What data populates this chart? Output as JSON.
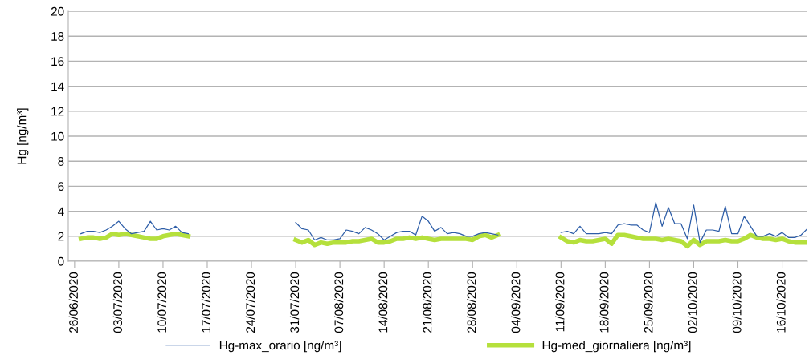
{
  "chart_data": {
    "type": "line",
    "ylabel": "Hg [ng/m³]",
    "x": [
      "2020-06-27",
      "2020-06-28",
      "2020-06-29",
      "2020-06-30",
      "2020-07-01",
      "2020-07-02",
      "2020-07-03",
      "2020-07-04",
      "2020-07-05",
      "2020-07-06",
      "2020-07-07",
      "2020-07-08",
      "2020-07-09",
      "2020-07-10",
      "2020-07-11",
      "2020-07-12",
      "2020-07-13",
      "2020-07-14",
      "2020-07-15",
      "2020-07-16",
      "2020-07-17",
      "2020-07-18",
      "2020-07-19",
      "2020-07-20",
      "2020-07-21",
      "2020-07-22",
      "2020-07-23",
      "2020-07-24",
      "2020-07-25",
      "2020-07-26",
      "2020-07-27",
      "2020-07-28",
      "2020-07-29",
      "2020-07-30",
      "2020-07-31",
      "2020-08-01",
      "2020-08-02",
      "2020-08-03",
      "2020-08-04",
      "2020-08-05",
      "2020-08-06",
      "2020-08-07",
      "2020-08-08",
      "2020-08-09",
      "2020-08-10",
      "2020-08-11",
      "2020-08-12",
      "2020-08-13",
      "2020-08-14",
      "2020-08-15",
      "2020-08-16",
      "2020-08-17",
      "2020-08-18",
      "2020-08-19",
      "2020-08-20",
      "2020-08-21",
      "2020-08-22",
      "2020-08-23",
      "2020-08-24",
      "2020-08-25",
      "2020-08-26",
      "2020-08-27",
      "2020-08-28",
      "2020-08-29",
      "2020-08-30",
      "2020-08-31",
      "2020-09-01",
      "2020-09-02",
      "2020-09-03",
      "2020-09-04",
      "2020-09-05",
      "2020-09-06",
      "2020-09-07",
      "2020-09-08",
      "2020-09-09",
      "2020-09-10",
      "2020-09-11",
      "2020-09-12",
      "2020-09-13",
      "2020-09-14",
      "2020-09-15",
      "2020-09-16",
      "2020-09-17",
      "2020-09-18",
      "2020-09-19",
      "2020-09-20",
      "2020-09-21",
      "2020-09-22",
      "2020-09-23",
      "2020-09-24",
      "2020-09-25",
      "2020-09-26",
      "2020-09-27",
      "2020-09-28",
      "2020-09-29",
      "2020-09-30",
      "2020-10-01",
      "2020-10-02",
      "2020-10-03",
      "2020-10-04",
      "2020-10-05",
      "2020-10-06",
      "2020-10-07",
      "2020-10-08",
      "2020-10-09",
      "2020-10-10",
      "2020-10-11",
      "2020-10-12",
      "2020-10-13",
      "2020-10-14",
      "2020-10-15",
      "2020-10-16",
      "2020-10-17",
      "2020-10-18",
      "2020-10-19",
      "2020-10-20"
    ],
    "series": [
      {
        "name": "Hg-max_orario [ng/m³]",
        "color": "#2e5ea8",
        "values": [
          2.2,
          2.4,
          2.4,
          2.3,
          2.5,
          2.8,
          3.2,
          2.6,
          2.2,
          2.3,
          2.4,
          3.2,
          2.5,
          2.6,
          2.5,
          2.8,
          2.3,
          2.2,
          null,
          null,
          null,
          null,
          null,
          null,
          null,
          null,
          null,
          null,
          null,
          null,
          null,
          null,
          null,
          null,
          3.1,
          2.6,
          2.5,
          1.7,
          1.9,
          1.7,
          1.7,
          1.8,
          2.5,
          2.4,
          2.2,
          2.7,
          2.5,
          2.2,
          1.7,
          2.0,
          2.3,
          2.4,
          2.4,
          2.1,
          3.6,
          3.2,
          2.4,
          2.7,
          2.2,
          2.3,
          2.2,
          2.0,
          2.0,
          2.2,
          2.3,
          2.2,
          2.1,
          null,
          null,
          null,
          null,
          null,
          null,
          null,
          null,
          null,
          2.3,
          2.4,
          2.2,
          2.8,
          2.2,
          2.2,
          2.2,
          2.3,
          2.2,
          2.9,
          3.0,
          2.9,
          2.9,
          2.5,
          2.3,
          4.7,
          2.8,
          4.3,
          3.0,
          3.0,
          1.8,
          4.5,
          1.5,
          2.5,
          2.5,
          2.4,
          4.4,
          2.2,
          2.2,
          3.6,
          2.8,
          2.0,
          2.0,
          2.2,
          2.0,
          2.3,
          1.9,
          1.9,
          2.1,
          2.6
        ]
      },
      {
        "name": "Hg-med_giornaliera [ng/m³]",
        "color": "#b5e03c",
        "values": [
          1.8,
          1.9,
          1.9,
          1.8,
          1.9,
          2.2,
          2.1,
          2.2,
          2.1,
          2.0,
          1.9,
          1.8,
          1.8,
          2.0,
          2.1,
          2.2,
          2.1,
          2.0,
          null,
          null,
          null,
          null,
          null,
          null,
          null,
          null,
          null,
          null,
          null,
          null,
          null,
          null,
          null,
          null,
          1.7,
          1.5,
          1.7,
          1.3,
          1.5,
          1.4,
          1.5,
          1.5,
          1.5,
          1.6,
          1.6,
          1.7,
          1.8,
          1.5,
          1.5,
          1.6,
          1.8,
          1.8,
          1.9,
          1.8,
          1.9,
          1.8,
          1.7,
          1.8,
          1.8,
          1.8,
          1.8,
          1.8,
          1.7,
          2.0,
          2.1,
          1.9,
          2.1,
          null,
          null,
          null,
          null,
          null,
          null,
          null,
          null,
          null,
          1.9,
          1.6,
          1.5,
          1.7,
          1.6,
          1.6,
          1.7,
          1.8,
          1.4,
          2.1,
          2.1,
          2.0,
          1.9,
          1.8,
          1.8,
          1.8,
          1.7,
          1.8,
          1.7,
          1.6,
          1.2,
          1.7,
          1.3,
          1.6,
          1.6,
          1.6,
          1.7,
          1.6,
          1.6,
          1.8,
          2.1,
          1.9,
          1.8,
          1.8,
          1.7,
          1.8,
          1.6,
          1.5,
          1.5,
          1.5
        ]
      }
    ],
    "xlim": [
      "2020-06-25",
      "2020-10-20"
    ],
    "xticks": [
      {
        "value": "2020-06-26",
        "label": "26/06/2020"
      },
      {
        "value": "2020-07-03",
        "label": "03/07/2020"
      },
      {
        "value": "2020-07-10",
        "label": "10/07/2020"
      },
      {
        "value": "2020-07-17",
        "label": "17/07/2020"
      },
      {
        "value": "2020-07-24",
        "label": "24/07/2020"
      },
      {
        "value": "2020-07-31",
        "label": "31/07/2020"
      },
      {
        "value": "2020-08-07",
        "label": "07/08/2020"
      },
      {
        "value": "2020-08-14",
        "label": "14/08/2020"
      },
      {
        "value": "2020-08-21",
        "label": "21/08/2020"
      },
      {
        "value": "2020-08-28",
        "label": "28/08/2020"
      },
      {
        "value": "2020-09-04",
        "label": "04/09/2020"
      },
      {
        "value": "2020-09-11",
        "label": "11/09/2020"
      },
      {
        "value": "2020-09-18",
        "label": "18/09/2020"
      },
      {
        "value": "2020-09-25",
        "label": "25/09/2020"
      },
      {
        "value": "2020-10-02",
        "label": "02/10/2020"
      },
      {
        "value": "2020-10-09",
        "label": "09/10/2020"
      },
      {
        "value": "2020-10-16",
        "label": "16/10/2020"
      }
    ],
    "ylim": [
      0,
      20
    ],
    "yticks": [
      0,
      2,
      4,
      6,
      8,
      10,
      12,
      14,
      16,
      18,
      20
    ],
    "grid": "y",
    "legend": "bottom",
    "marker": "none",
    "line_style": "solid"
  }
}
